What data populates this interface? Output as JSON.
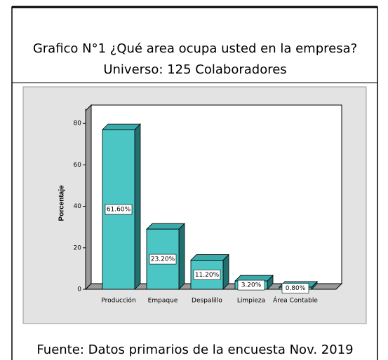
{
  "chart_data": {
    "type": "bar",
    "title": "Grafico N°1 ¿Qué area ocupa usted en la empresa?",
    "subtitle": "Universo: 125 Colaboradores",
    "ylabel": "Porcentaje",
    "categories": [
      "Producción",
      "Empaque",
      "Despalillo",
      "Limpieza",
      "Área Contable"
    ],
    "values": [
      77,
      29,
      14,
      4,
      1
    ],
    "annotations": [
      "61.60%",
      "23.20%",
      "11.20%",
      "3.20%",
      "0.80%"
    ],
    "color": "#4cc5c5",
    "ylim": [
      0,
      87
    ],
    "yticks": [
      0,
      20,
      40,
      60,
      80
    ],
    "source": "Fuente: Datos primarios de la encuesta Nov. 2019"
  }
}
